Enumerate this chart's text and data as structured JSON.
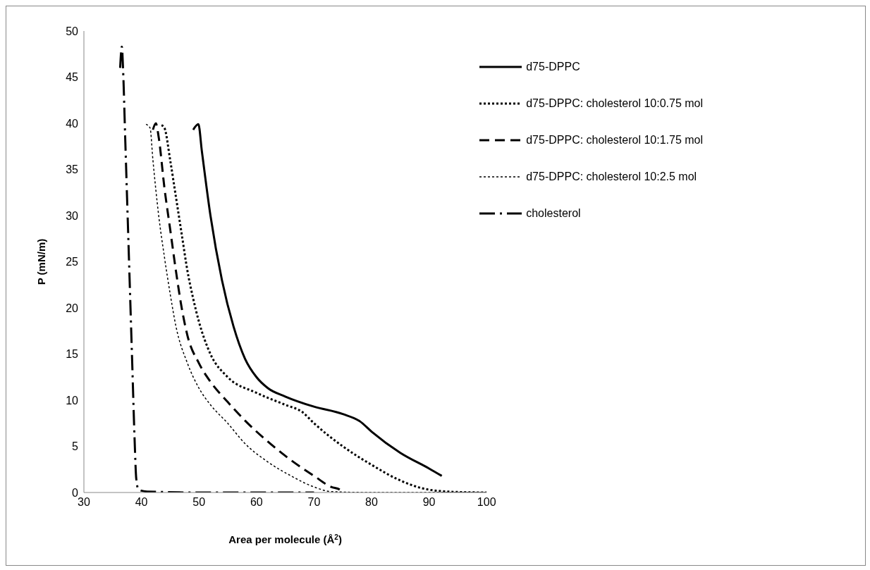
{
  "chart_data": {
    "type": "line",
    "xlabel": "Area per molecule (Å$^{2}$)",
    "ylabel": "P (mN/m)",
    "xlim": [
      30,
      100
    ],
    "xticks": [
      30,
      40,
      50,
      60,
      70,
      80,
      90,
      100
    ],
    "ylim": [
      0,
      50
    ],
    "yticks": [
      0,
      5,
      10,
      15,
      20,
      25,
      30,
      35,
      40,
      45,
      50
    ],
    "grid": false,
    "legend": "top right",
    "marker": "none",
    "series": [
      {
        "name": "d75-DPPC",
        "color": "#000000",
        "line_style": "solid",
        "x": [
          49,
          49.9,
          50.5,
          52,
          54,
          56,
          58,
          60,
          62,
          65,
          70,
          75,
          78,
          80,
          85,
          90,
          92.2
        ],
        "values": [
          39.3,
          39.9,
          37,
          30,
          23,
          18,
          14.5,
          12.5,
          11.3,
          10.4,
          9.3,
          8.5,
          7.7,
          6.6,
          4.3,
          2.6,
          1.8
        ]
      },
      {
        "name": "d75-DPPC: cholesterol 10:0.75 mol",
        "color": "#000000",
        "line_style": "dotted",
        "x": [
          43.5,
          44,
          45,
          46,
          47,
          48,
          49,
          50,
          52,
          55,
          60,
          65,
          68,
          70,
          75,
          80,
          85,
          90,
          95,
          100
        ],
        "values": [
          39.8,
          39.5,
          36,
          32,
          28,
          24,
          21,
          18.5,
          15,
          12.5,
          10.8,
          9.5,
          8.7,
          7.5,
          5,
          3,
          1.3,
          0.3,
          0.05,
          0
        ]
      },
      {
        "name": "d75-DPPC: cholesterol 10:1.75 mol",
        "color": "#000000",
        "line_style": "dashed",
        "x": [
          42,
          42.5,
          43,
          44,
          45,
          46,
          47,
          48,
          50,
          52,
          55,
          58,
          62,
          66,
          70,
          73,
          74.5,
          75
        ],
        "values": [
          39.3,
          40,
          38.5,
          33,
          28.5,
          24,
          20,
          17,
          14,
          12,
          9.8,
          7.8,
          5.5,
          3.5,
          1.8,
          0.6,
          0.3,
          0
        ]
      },
      {
        "name": "d75-DPPC: cholesterol 10:2.5 mol",
        "color": "#000000",
        "line_style": "dotted",
        "x": [
          40.8,
          41.5,
          42,
          43,
          44,
          45,
          46,
          48,
          50,
          52,
          55,
          58,
          62,
          66,
          70,
          73,
          80,
          100
        ],
        "values": [
          39.9,
          39.5,
          36,
          30,
          25.5,
          21.5,
          18,
          14,
          11.3,
          9.5,
          7.5,
          5.3,
          3.3,
          1.8,
          0.6,
          0.1,
          0,
          0
        ]
      },
      {
        "name": "cholesterol",
        "color": "#000000",
        "line_style": "dashdot",
        "x": [
          36.3,
          36.6,
          36.8,
          37.2,
          37.6,
          38,
          38.4,
          38.8,
          39.1,
          39.5,
          41,
          50,
          70
        ],
        "values": [
          46,
          48.3,
          46,
          38,
          30,
          22,
          14,
          6,
          1.5,
          0.3,
          0.1,
          0,
          0
        ]
      }
    ]
  }
}
